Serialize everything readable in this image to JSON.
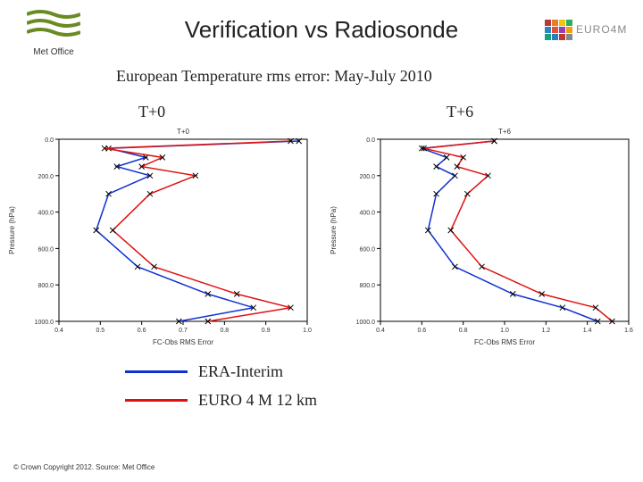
{
  "header": {
    "title": "Verification vs Radiosonde",
    "met_office_text": "Met Office",
    "euro4m_text": "EURO4M",
    "euro4m_block_colors": [
      [
        "#b43a3a",
        "#e67e22",
        "#f1c40f",
        "#27ae60"
      ],
      [
        "#2e86c1",
        "#e74c3c",
        "#8e44ad",
        "#f39c12"
      ],
      [
        "#16a085",
        "#2980b9",
        "#c0392b",
        "#7f8c8d"
      ]
    ],
    "met_wave_color": "#6a8a22",
    "met_box_color": "#000"
  },
  "subtitle": "European Temperature rms error: May-July 2010",
  "chart_labels": {
    "left": "T+0",
    "right": "T+6"
  },
  "charts": {
    "left": {
      "small_title": "T+0",
      "x_axis_label": "FC-Obs RMS Error",
      "y_axis_label": "Pressure (hPa)",
      "xlim": [
        0.4,
        1.0
      ],
      "xtick_step": 0.1,
      "ylim": [
        1000,
        0
      ],
      "yticks": [
        0,
        200,
        400,
        600,
        800,
        1000
      ],
      "yticklabels": [
        "0.0",
        "200.0",
        "400.0",
        "600.0",
        "800.0",
        "1000.0"
      ],
      "series": [
        {
          "name": "ERA-Interim",
          "color": "#1030d0",
          "marker": "x",
          "x": [
            0.98,
            0.52,
            0.61,
            0.54,
            0.62,
            0.52,
            0.49,
            0.59,
            0.76,
            0.87,
            0.69
          ],
          "y": [
            10,
            50,
            100,
            150,
            200,
            300,
            500,
            700,
            850,
            925,
            1000
          ]
        },
        {
          "name": "EURO 4 M 12 km",
          "color": "#e01010",
          "marker": "x",
          "x": [
            0.96,
            0.51,
            0.65,
            0.6,
            0.73,
            0.62,
            0.53,
            0.63,
            0.83,
            0.96,
            0.76
          ],
          "y": [
            10,
            50,
            100,
            150,
            200,
            300,
            500,
            700,
            850,
            925,
            1000
          ]
        }
      ]
    },
    "right": {
      "small_title": "T+6",
      "x_axis_label": "FC-Obs RMS Error",
      "y_axis_label": "Pressure (hPa)",
      "xlim": [
        0.4,
        1.6
      ],
      "xtick_step": 0.2,
      "ylim": [
        1000,
        0
      ],
      "yticks": [
        0,
        200,
        400,
        600,
        800,
        1000
      ],
      "yticklabels": [
        "0.0",
        "200.0",
        "400.0",
        "600.0",
        "800.0",
        "1000.0"
      ],
      "series": [
        {
          "name": "ERA-Interim",
          "color": "#1030d0",
          "marker": "x",
          "x": [
            0.95,
            0.6,
            0.72,
            0.67,
            0.76,
            0.67,
            0.63,
            0.76,
            1.04,
            1.28,
            1.45
          ],
          "y": [
            10,
            50,
            100,
            150,
            200,
            300,
            500,
            700,
            850,
            925,
            1000
          ]
        },
        {
          "name": "EURO 4 M 12 km",
          "color": "#e01010",
          "marker": "x",
          "x": [
            0.95,
            0.61,
            0.8,
            0.77,
            0.92,
            0.82,
            0.74,
            0.89,
            1.18,
            1.44,
            1.52
          ],
          "y": [
            10,
            50,
            100,
            150,
            200,
            300,
            500,
            700,
            850,
            925,
            1000
          ]
        }
      ]
    },
    "line_width": 1.5,
    "marker_color": "#000000",
    "background_color": "#ffffff",
    "axis_color": "#000000",
    "tick_fontsize": 7,
    "label_fontsize": 8
  },
  "legend": {
    "items": [
      {
        "label": "ERA-Interim",
        "color": "#1030d0"
      },
      {
        "label": "EURO 4 M 12 km",
        "color": "#e01010"
      }
    ],
    "font_size": 18,
    "swatch_width": 70,
    "swatch_height": 3
  },
  "copyright": "© Crown Copyright 2012. Source: Met Office"
}
